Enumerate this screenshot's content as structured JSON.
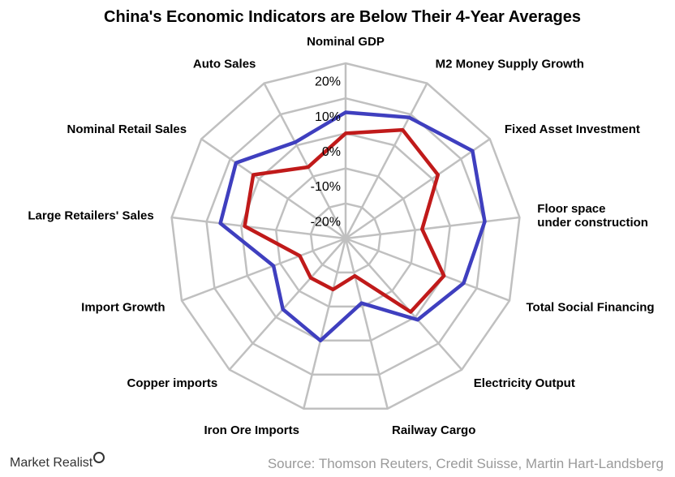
{
  "chart_data": {
    "type": "radar",
    "title": "China's Economic Indicators are Below Their 4-Year Averages",
    "axes": [
      "Nominal GDP",
      "M2 Money Supply Growth",
      "Fixed Asset Investment",
      "Floor space under construction",
      "Total Social Financing",
      "Electricity Output",
      "Railway Cargo",
      "Iron Ore Imports",
      "Copper imports",
      "Import Growth",
      "Large Retailers' Sales",
      "Nominal Retail Sales",
      "Auto Sales"
    ],
    "radial_ticks": [
      "-20%",
      "-10%",
      "0%",
      "10%",
      "20%"
    ],
    "radial_range": [
      -25,
      25
    ],
    "series": [
      {
        "values": [
          11,
          14,
          19,
          15,
          11,
          6,
          -6,
          5,
          2,
          -3,
          11,
          13,
          6
        ],
        "color": "#3f3fbf"
      },
      {
        "values": [
          5,
          10,
          7,
          -3,
          5,
          3,
          -14,
          -10,
          -10,
          -11,
          4,
          7,
          -2
        ],
        "color": "#c01a1a"
      }
    ]
  },
  "source": "Source: Thomson Reuters, Credit Suisse, Martin Hart-Landsberg",
  "brand": "Market Realist"
}
